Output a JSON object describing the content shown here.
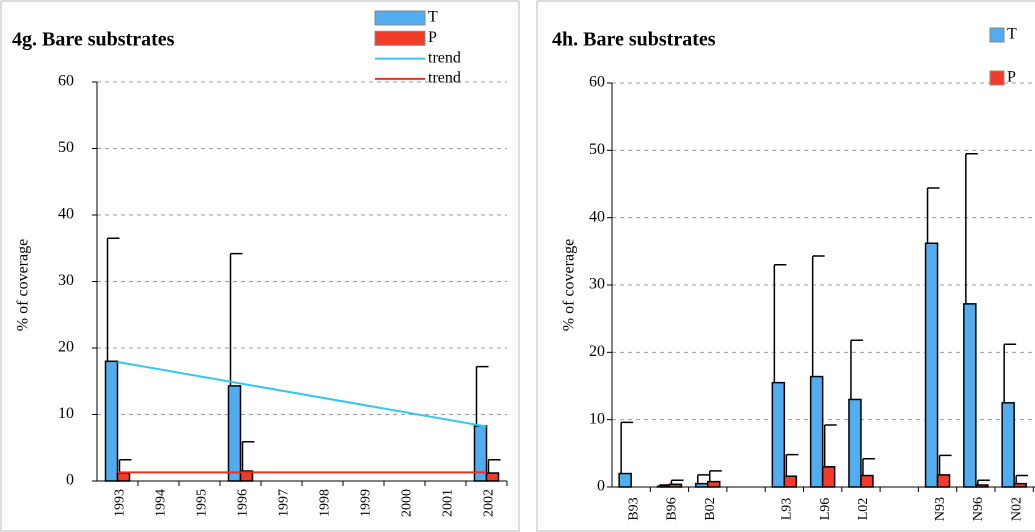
{
  "chart_data": [
    {
      "type": "bar",
      "title": "4g. Bare substrates",
      "y_label": "% of coverage",
      "categories": [
        "1993",
        "1994",
        "1995",
        "1996",
        "1997",
        "1998",
        "1999",
        "2000",
        "2001",
        "2002"
      ],
      "series": [
        {
          "name": "T",
          "color": "#52adf0",
          "values": [
            18,
            null,
            null,
            14.3,
            null,
            null,
            null,
            null,
            null,
            8.3
          ],
          "errors": [
            18.5,
            null,
            null,
            19.9,
            null,
            null,
            null,
            null,
            null,
            8.9
          ]
        },
        {
          "name": "P",
          "color": "#f23b2b",
          "values": [
            1.2,
            null,
            null,
            1.5,
            null,
            null,
            null,
            null,
            null,
            1.2
          ],
          "errors": [
            2,
            null,
            null,
            4.4,
            null,
            null,
            null,
            null,
            null,
            2
          ]
        },
        {
          "name": "trend",
          "type": "line",
          "color": "#35c6f2",
          "x": [
            "1993",
            "2002"
          ],
          "values": [
            17.9,
            8.2
          ]
        },
        {
          "name": "trend",
          "type": "line",
          "color": "#e8321e",
          "x": [
            "1993",
            "2002"
          ],
          "values": [
            1.3,
            1.3
          ]
        }
      ],
      "ylim": [
        0,
        60
      ],
      "yticks": [
        0,
        10,
        20,
        30,
        40,
        50,
        60
      ],
      "grid": true,
      "legend": "upper right"
    },
    {
      "type": "bar",
      "title": "4h. Bare substrates",
      "y_label": "% of coverage",
      "categories": [
        "B93",
        "B96",
        "B02",
        null,
        "L93",
        "L96",
        "L02",
        null,
        "N93",
        "N96",
        "N02"
      ],
      "series": [
        {
          "name": "T",
          "color": "#52adf0",
          "values": [
            2,
            0.1,
            0.5,
            null,
            15.5,
            16.4,
            13,
            null,
            36.2,
            27.2,
            12.5
          ],
          "errors": [
            7.6,
            0.2,
            1.3,
            null,
            17.5,
            17.9,
            8.8,
            null,
            8.2,
            22.3,
            8.7
          ]
        },
        {
          "name": "P",
          "color": "#f23b2b",
          "values": [
            0,
            0.4,
            0.8,
            null,
            1.6,
            3,
            1.7,
            null,
            1.8,
            0.3,
            0.5
          ],
          "errors": [
            null,
            0.6,
            1.6,
            null,
            3.2,
            6.2,
            2.5,
            null,
            2.9,
            0.7,
            1.2
          ]
        }
      ],
      "ylim": [
        0,
        60
      ],
      "yticks": [
        0,
        10,
        20,
        30,
        40,
        50,
        60
      ],
      "grid": true,
      "legend": "upper right"
    }
  ]
}
